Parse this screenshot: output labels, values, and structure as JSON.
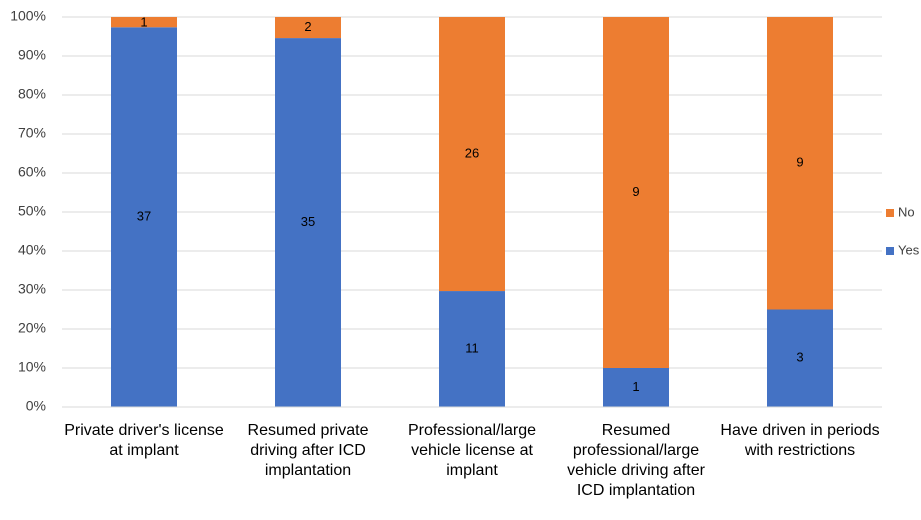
{
  "chart_data": {
    "type": "bar",
    "stack": "percent",
    "categories": [
      "Private driver's license at implant",
      "Resumed private driving after ICD implantation",
      "Professional/large vehicle license at implant",
      "Resumed professional/large vehicle driving after ICD implantation",
      "Have driven in periods with restrictions"
    ],
    "series": [
      {
        "name": "Yes",
        "color": "#4472c4",
        "values": [
          37,
          35,
          11,
          1,
          3
        ]
      },
      {
        "name": "No",
        "color": "#ed7d31",
        "values": [
          1,
          2,
          26,
          9,
          9
        ]
      }
    ],
    "ylim": [
      0,
      100
    ],
    "yticks": [
      {
        "value": 0,
        "label": "0%"
      },
      {
        "value": 10,
        "label": "10%"
      },
      {
        "value": 20,
        "label": "20%"
      },
      {
        "value": 30,
        "label": "30%"
      },
      {
        "value": 40,
        "label": "40%"
      },
      {
        "value": 50,
        "label": "50%"
      },
      {
        "value": 60,
        "label": "60%"
      },
      {
        "value": 70,
        "label": "70%"
      },
      {
        "value": 80,
        "label": "80%"
      },
      {
        "value": 90,
        "label": "90%"
      },
      {
        "value": 100,
        "label": "100%"
      }
    ],
    "grid": true,
    "legend": "right"
  }
}
